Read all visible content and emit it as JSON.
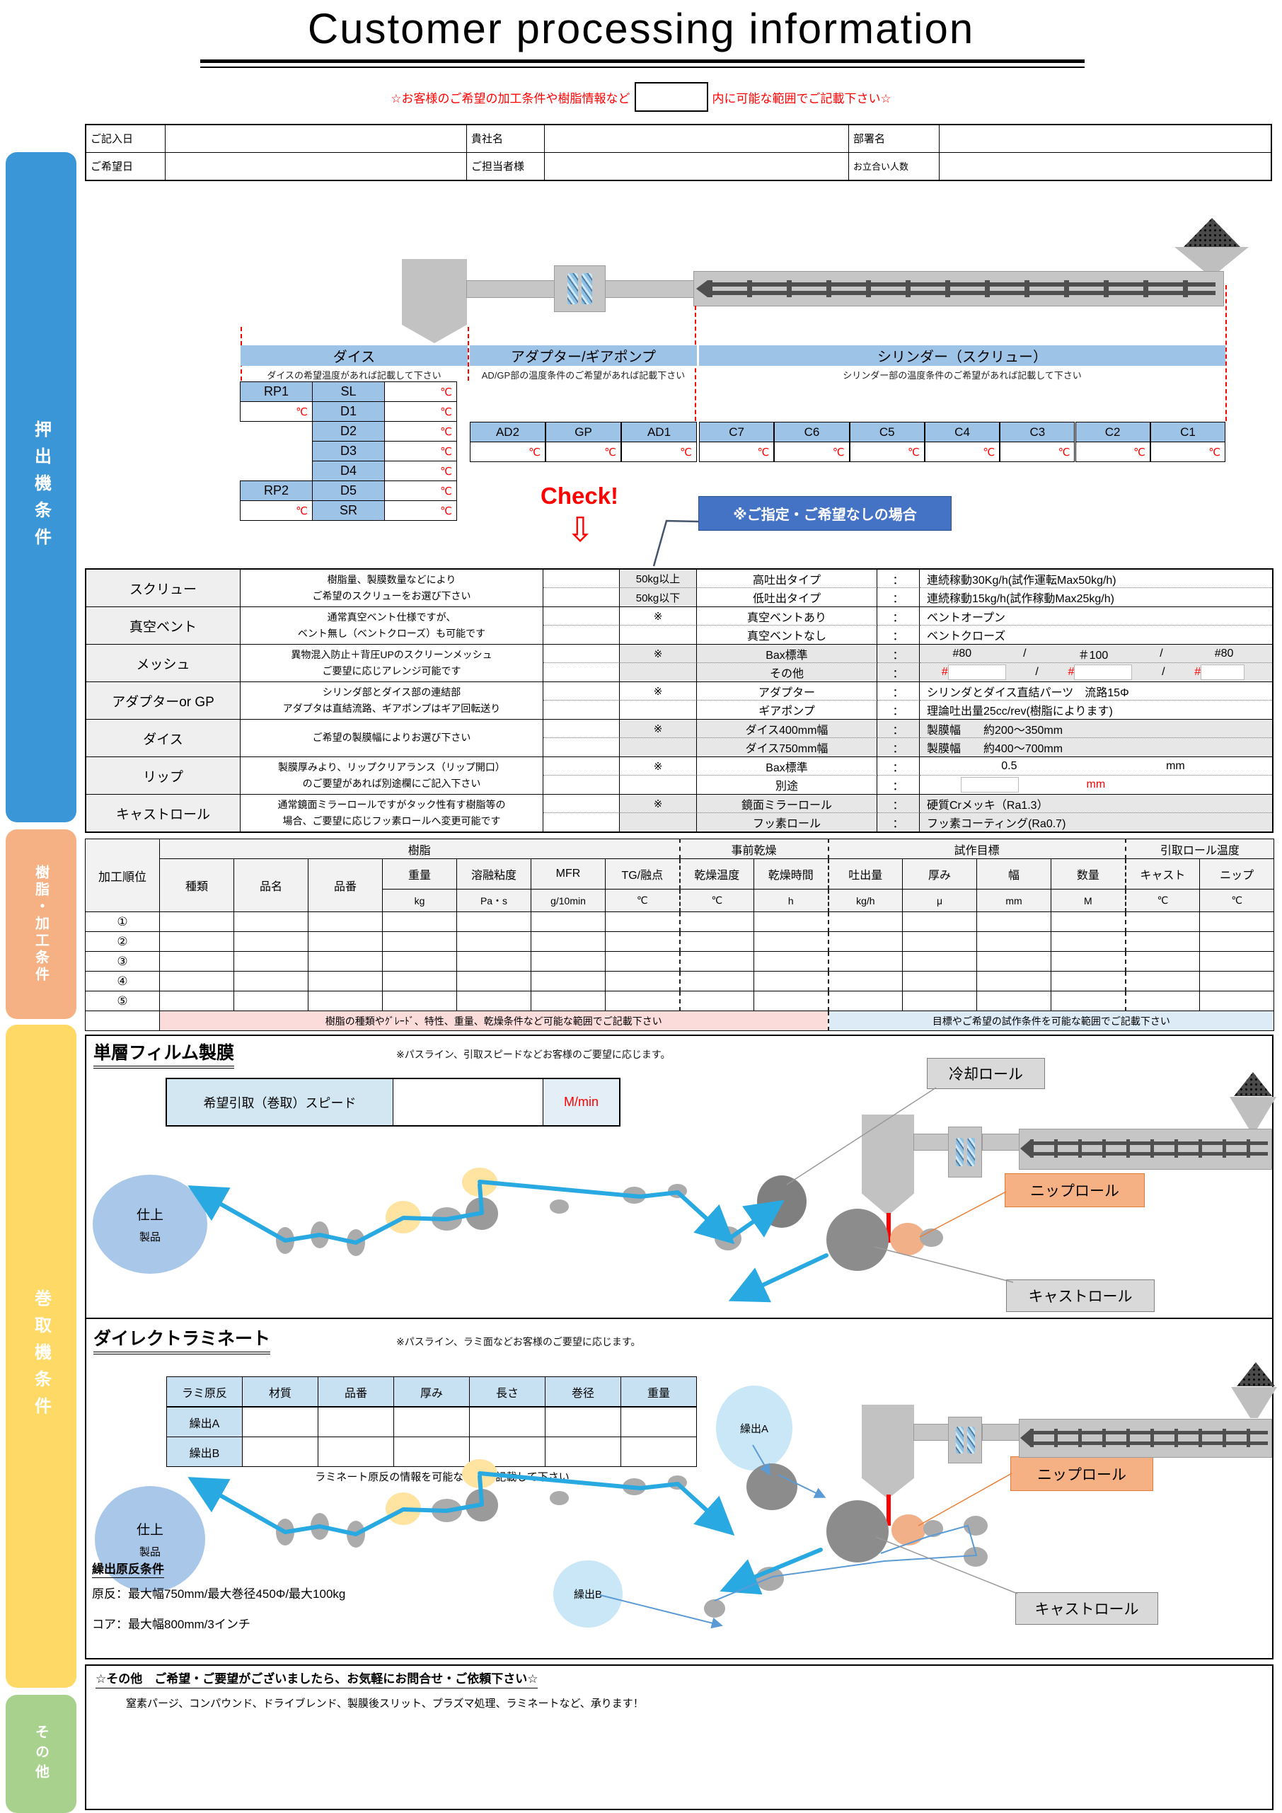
{
  "title": "Customer processing information",
  "subtitle": {
    "left": "☆お客様のご希望の加工条件や樹脂情報など",
    "right": "内に可能な範囲でご記載下さい☆"
  },
  "info_table": {
    "row1": [
      {
        "label": "ご記入日"
      },
      {
        "label": "貴社名"
      },
      {
        "label": "部署名"
      }
    ],
    "row2": [
      {
        "label": "ご希望日"
      },
      {
        "label": "ご担当者様"
      },
      {
        "label": "お立合い人数"
      }
    ]
  },
  "sidebar": {
    "sections": [
      {
        "label": "押出機条件",
        "color": "#3b96d8"
      },
      {
        "label": "樹脂・加工条件",
        "color": "#f5b183"
      },
      {
        "label": "巻取機条件",
        "color": "#ffd965"
      },
      {
        "label": "その他",
        "color": "#a9d18e"
      }
    ]
  },
  "extruder": {
    "zones": [
      {
        "name": "ダイス",
        "note": "ダイスの希望温度があれば記載して下さい"
      },
      {
        "name": "アダプター/ギアポンプ",
        "note": "AD/GP部の温度条件のご希望があれば記載下さい"
      },
      {
        "name": "シリンダー（スクリュー）",
        "note": "シリンダー部の温度条件のご希望があれば記載して下さい"
      }
    ],
    "deg": "℃",
    "die_rows": [
      {
        "left": "RP1",
        "left_type": "blue",
        "mid": "SL"
      },
      {
        "left": "℃",
        "left_type": "temp",
        "mid": "D1"
      },
      {
        "left": "",
        "left_type": "none",
        "mid": "D2"
      },
      {
        "left": "",
        "left_type": "none",
        "mid": "D3"
      },
      {
        "left": "",
        "left_type": "none",
        "mid": "D4"
      },
      {
        "left": "RP2",
        "left_type": "blue",
        "mid": "D5"
      },
      {
        "left": "℃",
        "left_type": "temp",
        "mid": "SR"
      }
    ],
    "adapter_cells": [
      "AD2",
      "GP",
      "AD1"
    ],
    "cylinder_cells": [
      "C7",
      "C6",
      "C5",
      "C4",
      "C3",
      "C2",
      "C1"
    ],
    "check_label": "Check!",
    "check_arrow": "⇩",
    "no_preference_label": "※ご指定・ご希望なしの場合"
  },
  "conditions": {
    "groups": [
      {
        "label": "スクリュー",
        "desc": [
          "樹脂量、製膜数量などにより",
          "ご希望のスクリューをお選び下さい"
        ],
        "shaded": false,
        "sel_shaded": true,
        "rows": [
          {
            "sel": "50kg以上",
            "opt": "高吐出タイプ",
            "colon": "：",
            "val": "連続稼動30Kg/h(試作運転Max50kg/h)"
          },
          {
            "sel": "50kg以下",
            "opt": "低吐出タイプ",
            "colon": "：",
            "val": "連続稼動15kg/h(試作稼動Max25kg/h)"
          }
        ]
      },
      {
        "label": "真空ベント",
        "desc": [
          "通常真空ベント仕様ですが、",
          "ベント無し（ベントクローズ）も可能です"
        ],
        "shaded": false,
        "rows": [
          {
            "sel": "※",
            "opt": "真空ベントあり",
            "colon": "：",
            "val": "ベントオープン"
          },
          {
            "sel": "",
            "opt": "真空ベントなし",
            "colon": "：",
            "val": "ベントクローズ"
          }
        ]
      },
      {
        "label": "メッシュ",
        "desc": [
          "異物混入防止＋背圧UPのスクリーンメッシュ",
          "ご要望に応じアレンジ可能です"
        ],
        "shaded": true,
        "rows": [
          {
            "sel": "※",
            "opt": "Bax標準",
            "colon": "：",
            "val_parts": [
              "#80",
              "/",
              "＃100",
              "/",
              "#80"
            ]
          },
          {
            "sel": "",
            "opt": "その他",
            "colon": "：",
            "val_special": "mesh_other",
            "mesh_symbol": "#",
            "mesh_sep": "/"
          }
        ]
      },
      {
        "label": "アダプターor GP",
        "desc": [
          "シリンダ部とダイス部の連結部",
          "アダプタは直結流路、ギアポンプはギア回転送り"
        ],
        "shaded": false,
        "rows": [
          {
            "sel": "※",
            "opt": "アダプター",
            "colon": "：",
            "val": "シリンダとダイス直結パーツ　流路15Φ"
          },
          {
            "sel": "",
            "opt": "ギアポンプ",
            "colon": "：",
            "val": "理論吐出量25cc/rev(樹脂によります)"
          }
        ]
      },
      {
        "label": "ダイス",
        "desc": [
          "ご希望の製膜幅によりお選び下さい"
        ],
        "shaded": true,
        "rows": [
          {
            "sel": "※",
            "opt": "ダイス400mm幅",
            "colon": "：",
            "val": "製膜幅　　約200～350mm"
          },
          {
            "sel": "",
            "opt": "ダイス750mm幅",
            "colon": "：",
            "val": "製膜幅　　約400～700mm"
          }
        ]
      },
      {
        "label": "リップ",
        "desc": [
          "製膜厚みより、リップクリアランス（リップ開口）",
          "のご要望があれば別途欄にご記入下さい"
        ],
        "shaded": false,
        "rows": [
          {
            "sel": "※",
            "opt": "Bax標準",
            "colon": "：",
            "val_parts": [
              "0.5",
              "mm"
            ]
          },
          {
            "sel": "",
            "opt": "別途",
            "colon": "：",
            "val_special": "lip_blank",
            "unit": "mm"
          }
        ]
      },
      {
        "label": "キャストロール",
        "desc": [
          "通常鏡面ミラーロールですがタック性有す樹脂等の",
          "場合、ご要望に応じフッ素ロールへ変更可能です"
        ],
        "shaded": true,
        "rows": [
          {
            "sel": "※",
            "opt": "鏡面ミラーロール",
            "colon": "：",
            "val": "硬質Crメッキ（Ra1.3）"
          },
          {
            "sel": "",
            "opt": "フッ素ロール",
            "colon": "：",
            "val": "フッ素コーティング(Ra0.7)"
          }
        ]
      }
    ]
  },
  "resin_table": {
    "order_label": "加工順位",
    "bands": [
      {
        "label": "樹脂",
        "span": 7
      },
      {
        "label": "事前乾燥",
        "span": 2
      },
      {
        "label": "試作目標",
        "span": 4
      },
      {
        "label": "引取ロール温度",
        "span": 2
      }
    ],
    "columns": [
      {
        "name": "種類"
      },
      {
        "name": "品名"
      },
      {
        "name": "品番"
      },
      {
        "name": "重量",
        "unit": "kg"
      },
      {
        "name": "溶融粘度",
        "unit": "Pa・s"
      },
      {
        "name": "MFR",
        "unit": "g/10min"
      },
      {
        "name": "TG/融点",
        "unit": "℃"
      },
      {
        "name": "乾燥温度",
        "unit": "℃",
        "dash": true
      },
      {
        "name": "乾燥時間",
        "unit": "h"
      },
      {
        "name": "吐出量",
        "unit": "kg/h",
        "dash": true
      },
      {
        "name": "厚み",
        "unit": "μ"
      },
      {
        "name": "幅",
        "unit": "mm"
      },
      {
        "name": "数量",
        "unit": "M"
      },
      {
        "name": "キャスト",
        "unit": "℃",
        "dash": true
      },
      {
        "name": "ニップ",
        "unit": "℃"
      }
    ],
    "row_labels": [
      "①",
      "②",
      "③",
      "④",
      "⑤"
    ],
    "footer_pink": "樹脂の種類やｸﾞﾚｰﾄﾞ、特性、重量、乾燥条件など可能な範囲でご記載下さい",
    "footer_blue": "目標やご希望の試作条件を可能な範囲でご記載下さい"
  },
  "monolayer": {
    "title": "単層フィルム製膜",
    "note": "※パスライン、引取スピードなどお客様のご要望に応じます。",
    "speed_label": "希望引取（巻取）スピード",
    "speed_unit": "M/min",
    "cooling_label": "冷却ロール",
    "nip_label": "ニップロール",
    "cast_label": "キャストロール",
    "finish_top": "仕上",
    "finish_bottom": "製品"
  },
  "laminate": {
    "title": "ダイレクトラミネート",
    "note": "※パスライン、ラミ面などお客様のご要望に応じます。",
    "table_headers": [
      "ラミ原反",
      "材質",
      "品番",
      "厚み",
      "長さ",
      "巻径",
      "重量"
    ],
    "table_rows": [
      "繰出A",
      "繰出B"
    ],
    "table_note": "ラミネート原反の情報を可能な範囲で記載して下さい",
    "unwind_a": "繰出A",
    "unwind_b": "繰出B",
    "nip_label": "ニップロール",
    "cast_label": "キャストロール",
    "conditions_title": "繰出原反条件",
    "condition1": "原反：最大幅750mm/最大巻径450Φ/最大100kg",
    "condition2": "コア：最大幅800mm/3インチ",
    "finish_top": "仕上",
    "finish_bottom": "製品"
  },
  "other": {
    "title": "☆その他　ご希望・ご要望がございましたら、お気軽にお問合せ・ご依頼下さい☆",
    "body": "窒素パージ、コンパウンド、ドライブレンド、製膜後スリット、プラズマ処理、ラミネートなど、承ります！"
  }
}
